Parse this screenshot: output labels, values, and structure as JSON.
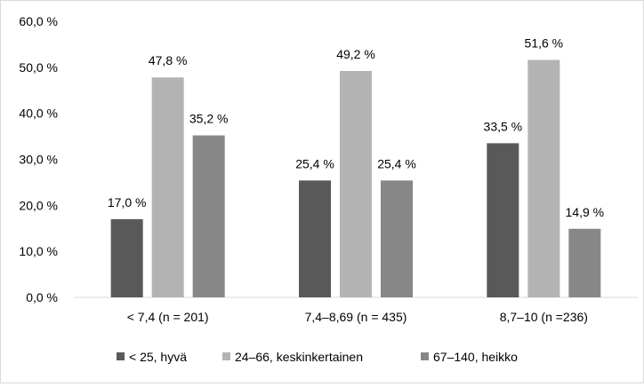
{
  "chart_data": {
    "type": "bar",
    "categories": [
      "< 7,4 (n = 201)",
      "7,4–8,69 (n = 435)",
      "8,7–10 (n =236)"
    ],
    "series": [
      {
        "name": "< 25, hyvä",
        "values": [
          17.0,
          25.4,
          33.5
        ],
        "labels": [
          "17,0 %",
          "25,4 %",
          "33,5 %"
        ],
        "color": "#595959"
      },
      {
        "name": "24–66, keskinkertainen",
        "values": [
          47.8,
          49.2,
          51.6
        ],
        "labels": [
          "47,8 %",
          "49,2 %",
          "51,6 %"
        ],
        "color": "#b3b3b3"
      },
      {
        "name": "67–140, heikko",
        "values": [
          35.2,
          25.4,
          14.9
        ],
        "labels": [
          "35,2 %",
          "25,4 %",
          "14,9 %"
        ],
        "color": "#878787"
      }
    ],
    "ylim": [
      0,
      60
    ],
    "yticks": [
      0,
      10,
      20,
      30,
      40,
      50,
      60
    ],
    "ytick_labels": [
      "0,0 %",
      "10,0 %",
      "20,0 %",
      "30,0 %",
      "40,0 %",
      "50,0 %",
      "60,0 %"
    ],
    "grid": false,
    "legend": "bottom",
    "title": "",
    "xlabel": "",
    "ylabel": ""
  }
}
